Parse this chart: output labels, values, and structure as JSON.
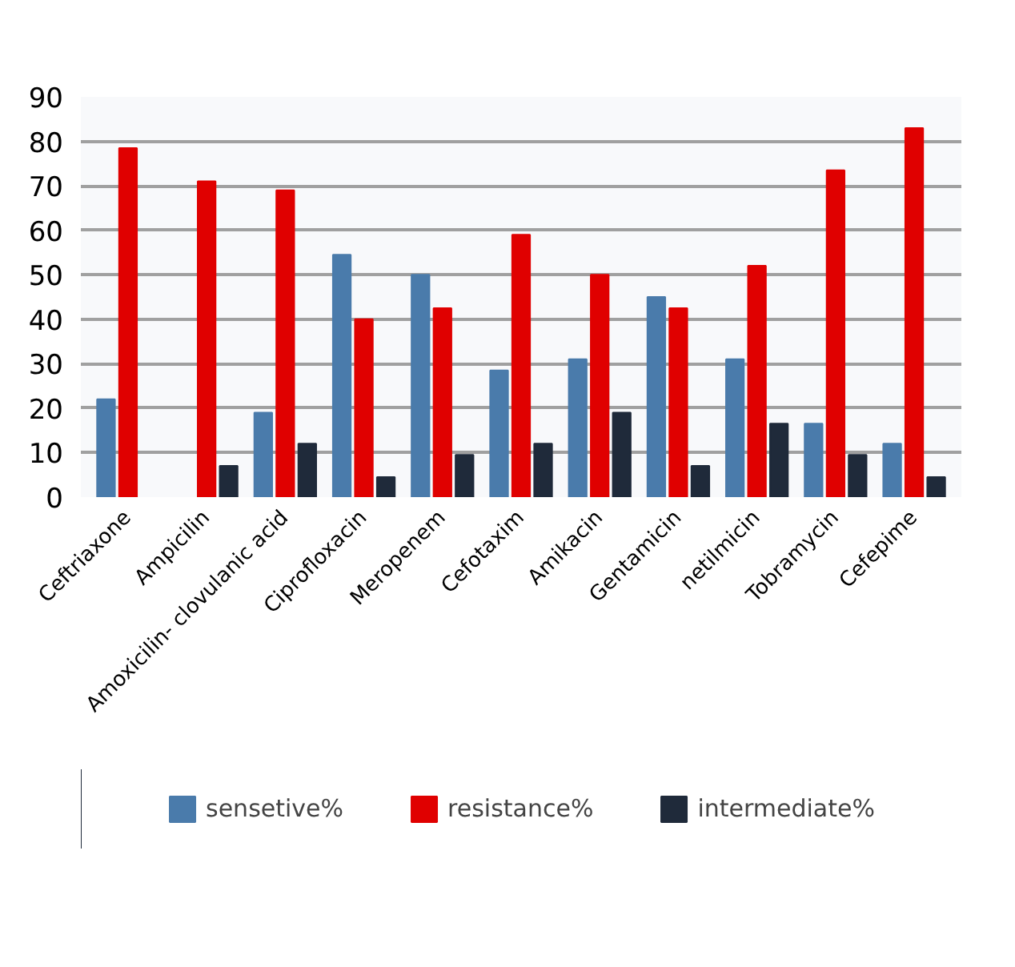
{
  "chart_data": {
    "type": "bar",
    "categories": [
      "Ceftriaxone",
      "Ampicilin",
      "Amoxicilin- clovulanic acid",
      "Ciprofloxacin",
      "Meropenem",
      "Cefotaxim",
      "Amikacin",
      "Gentamicin",
      "netilmicin",
      "Tobramycin",
      "Cefepime"
    ],
    "series": [
      {
        "name": "sensetive%",
        "color": "#4a7bab",
        "values": [
          22,
          null,
          19,
          54.5,
          50,
          28.5,
          31,
          45,
          31,
          16.5,
          12
        ]
      },
      {
        "name": "resistance%",
        "color": "#e00000",
        "values": [
          78.5,
          71,
          69,
          40,
          42.5,
          59,
          50,
          42.5,
          52,
          73.5,
          83
        ]
      },
      {
        "name": "intermediate%",
        "color": "#1f2a3a",
        "values": [
          null,
          7,
          12,
          4.5,
          9.5,
          12,
          19,
          7,
          16.5,
          9.5,
          4.5
        ]
      }
    ],
    "ylim": [
      0,
      90
    ],
    "yticks": [
      0,
      10,
      20,
      30,
      40,
      50,
      60,
      70,
      80,
      90
    ],
    "grid": "y",
    "legend": "bottom"
  }
}
